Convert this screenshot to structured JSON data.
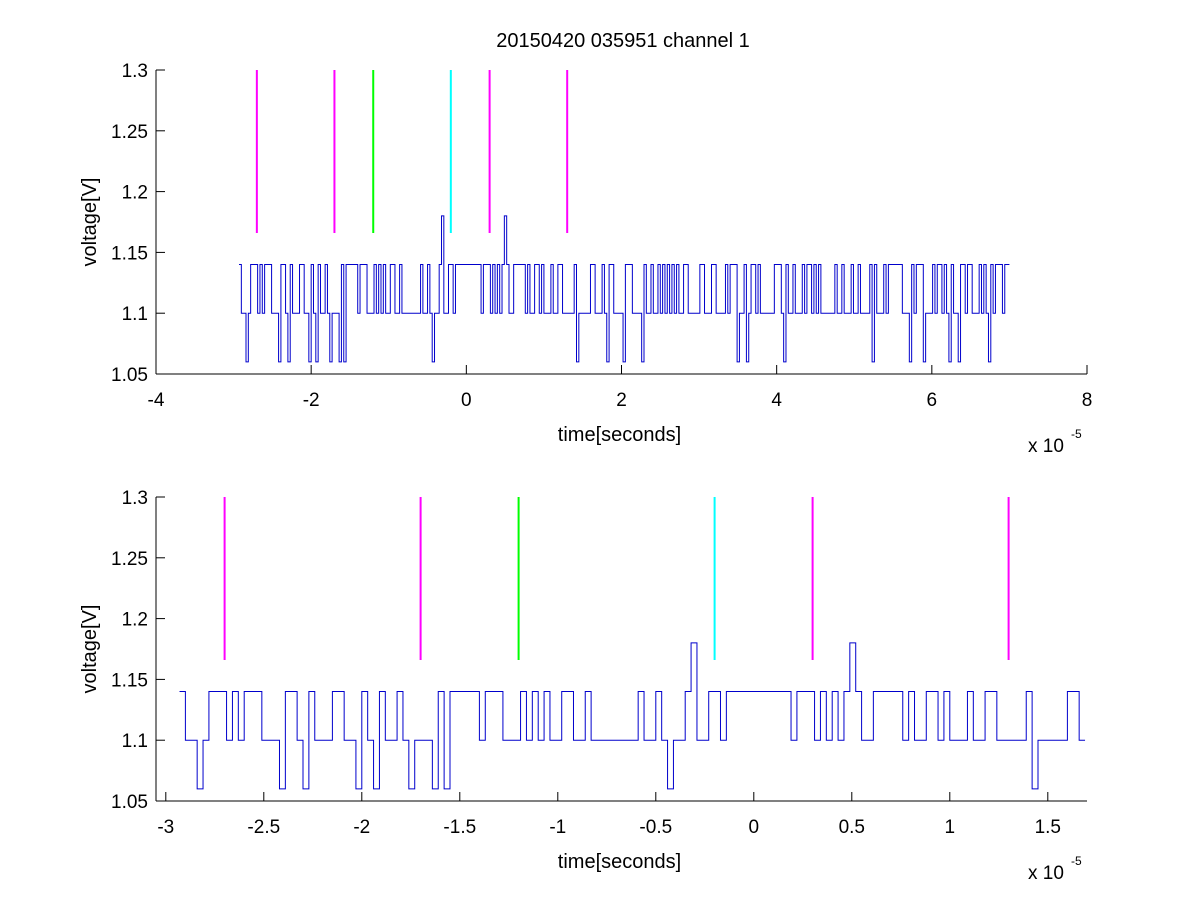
{
  "figure": {
    "title": "20150420 035951 channel 1"
  },
  "chart_data": [
    {
      "type": "line",
      "xlabel": "time[seconds]",
      "ylabel": "voltage[V]",
      "x_multiplier_base": "x 10",
      "x_multiplier_exp": "-5",
      "xlim": [
        -4,
        8
      ],
      "ylim": [
        1.05,
        1.3
      ],
      "xticks": [
        -4,
        -2,
        0,
        2,
        4,
        6,
        8
      ],
      "xtick_labels": [
        "-4",
        "-2",
        "0",
        "2",
        "4",
        "6",
        "8"
      ],
      "yticks": [
        1.05,
        1.1,
        1.15,
        1.2,
        1.25,
        1.3
      ],
      "ytick_labels": [
        "1.05",
        "1.1",
        "1.15",
        "1.2",
        "1.25",
        "1.3"
      ],
      "grid": false,
      "trace": {
        "color": "#0000cc",
        "x_range": [
          -2.93,
          7.0
        ],
        "levels": [
          1.06,
          1.1,
          1.14
        ],
        "spikes": [
          {
            "x": -0.32,
            "y": 1.18
          },
          {
            "x": 0.49,
            "y": 1.18
          }
        ]
      },
      "markers": [
        {
          "x": -2.7,
          "y_from": 1.166,
          "y_to": 1.3,
          "color": "#ff00ff"
        },
        {
          "x": -1.7,
          "y_from": 1.166,
          "y_to": 1.3,
          "color": "#ff00ff"
        },
        {
          "x": -1.2,
          "y_from": 1.166,
          "y_to": 1.3,
          "color": "#00ff00"
        },
        {
          "x": -0.2,
          "y_from": 1.166,
          "y_to": 1.3,
          "color": "#00ffff"
        },
        {
          "x": 0.3,
          "y_from": 1.166,
          "y_to": 1.3,
          "color": "#ff00ff"
        },
        {
          "x": 1.3,
          "y_from": 1.166,
          "y_to": 1.3,
          "color": "#ff00ff"
        }
      ]
    },
    {
      "type": "line",
      "xlabel": "time[seconds]",
      "ylabel": "voltage[V]",
      "x_multiplier_base": "x 10",
      "x_multiplier_exp": "-5",
      "xlim": [
        -3.05,
        1.7
      ],
      "ylim": [
        1.05,
        1.3
      ],
      "xticks": [
        -3,
        -2.5,
        -2,
        -1.5,
        -1,
        -0.5,
        0,
        0.5,
        1,
        1.5
      ],
      "xtick_labels": [
        "-3",
        "-2.5",
        "-2",
        "-1.5",
        "-1",
        "-0.5",
        "0",
        "0.5",
        "1",
        "1.5"
      ],
      "yticks": [
        1.05,
        1.1,
        1.15,
        1.2,
        1.25,
        1.3
      ],
      "ytick_labels": [
        "1.05",
        "1.1",
        "1.15",
        "1.2",
        "1.25",
        "1.3"
      ],
      "grid": false,
      "trace": {
        "color": "#0000cc",
        "x_range": [
          -2.93,
          1.7
        ],
        "levels": [
          1.06,
          1.1,
          1.14
        ],
        "spikes": [
          {
            "x": -0.32,
            "y": 1.18
          },
          {
            "x": 0.49,
            "y": 1.18
          }
        ]
      },
      "markers": [
        {
          "x": -2.7,
          "y_from": 1.166,
          "y_to": 1.3,
          "color": "#ff00ff"
        },
        {
          "x": -1.7,
          "y_from": 1.166,
          "y_to": 1.3,
          "color": "#ff00ff"
        },
        {
          "x": -1.2,
          "y_from": 1.166,
          "y_to": 1.3,
          "color": "#00ff00"
        },
        {
          "x": -0.2,
          "y_from": 1.166,
          "y_to": 1.3,
          "color": "#00ffff"
        },
        {
          "x": 0.3,
          "y_from": 1.166,
          "y_to": 1.3,
          "color": "#ff00ff"
        },
        {
          "x": 1.3,
          "y_from": 1.166,
          "y_to": 1.3,
          "color": "#ff00ff"
        }
      ]
    }
  ]
}
